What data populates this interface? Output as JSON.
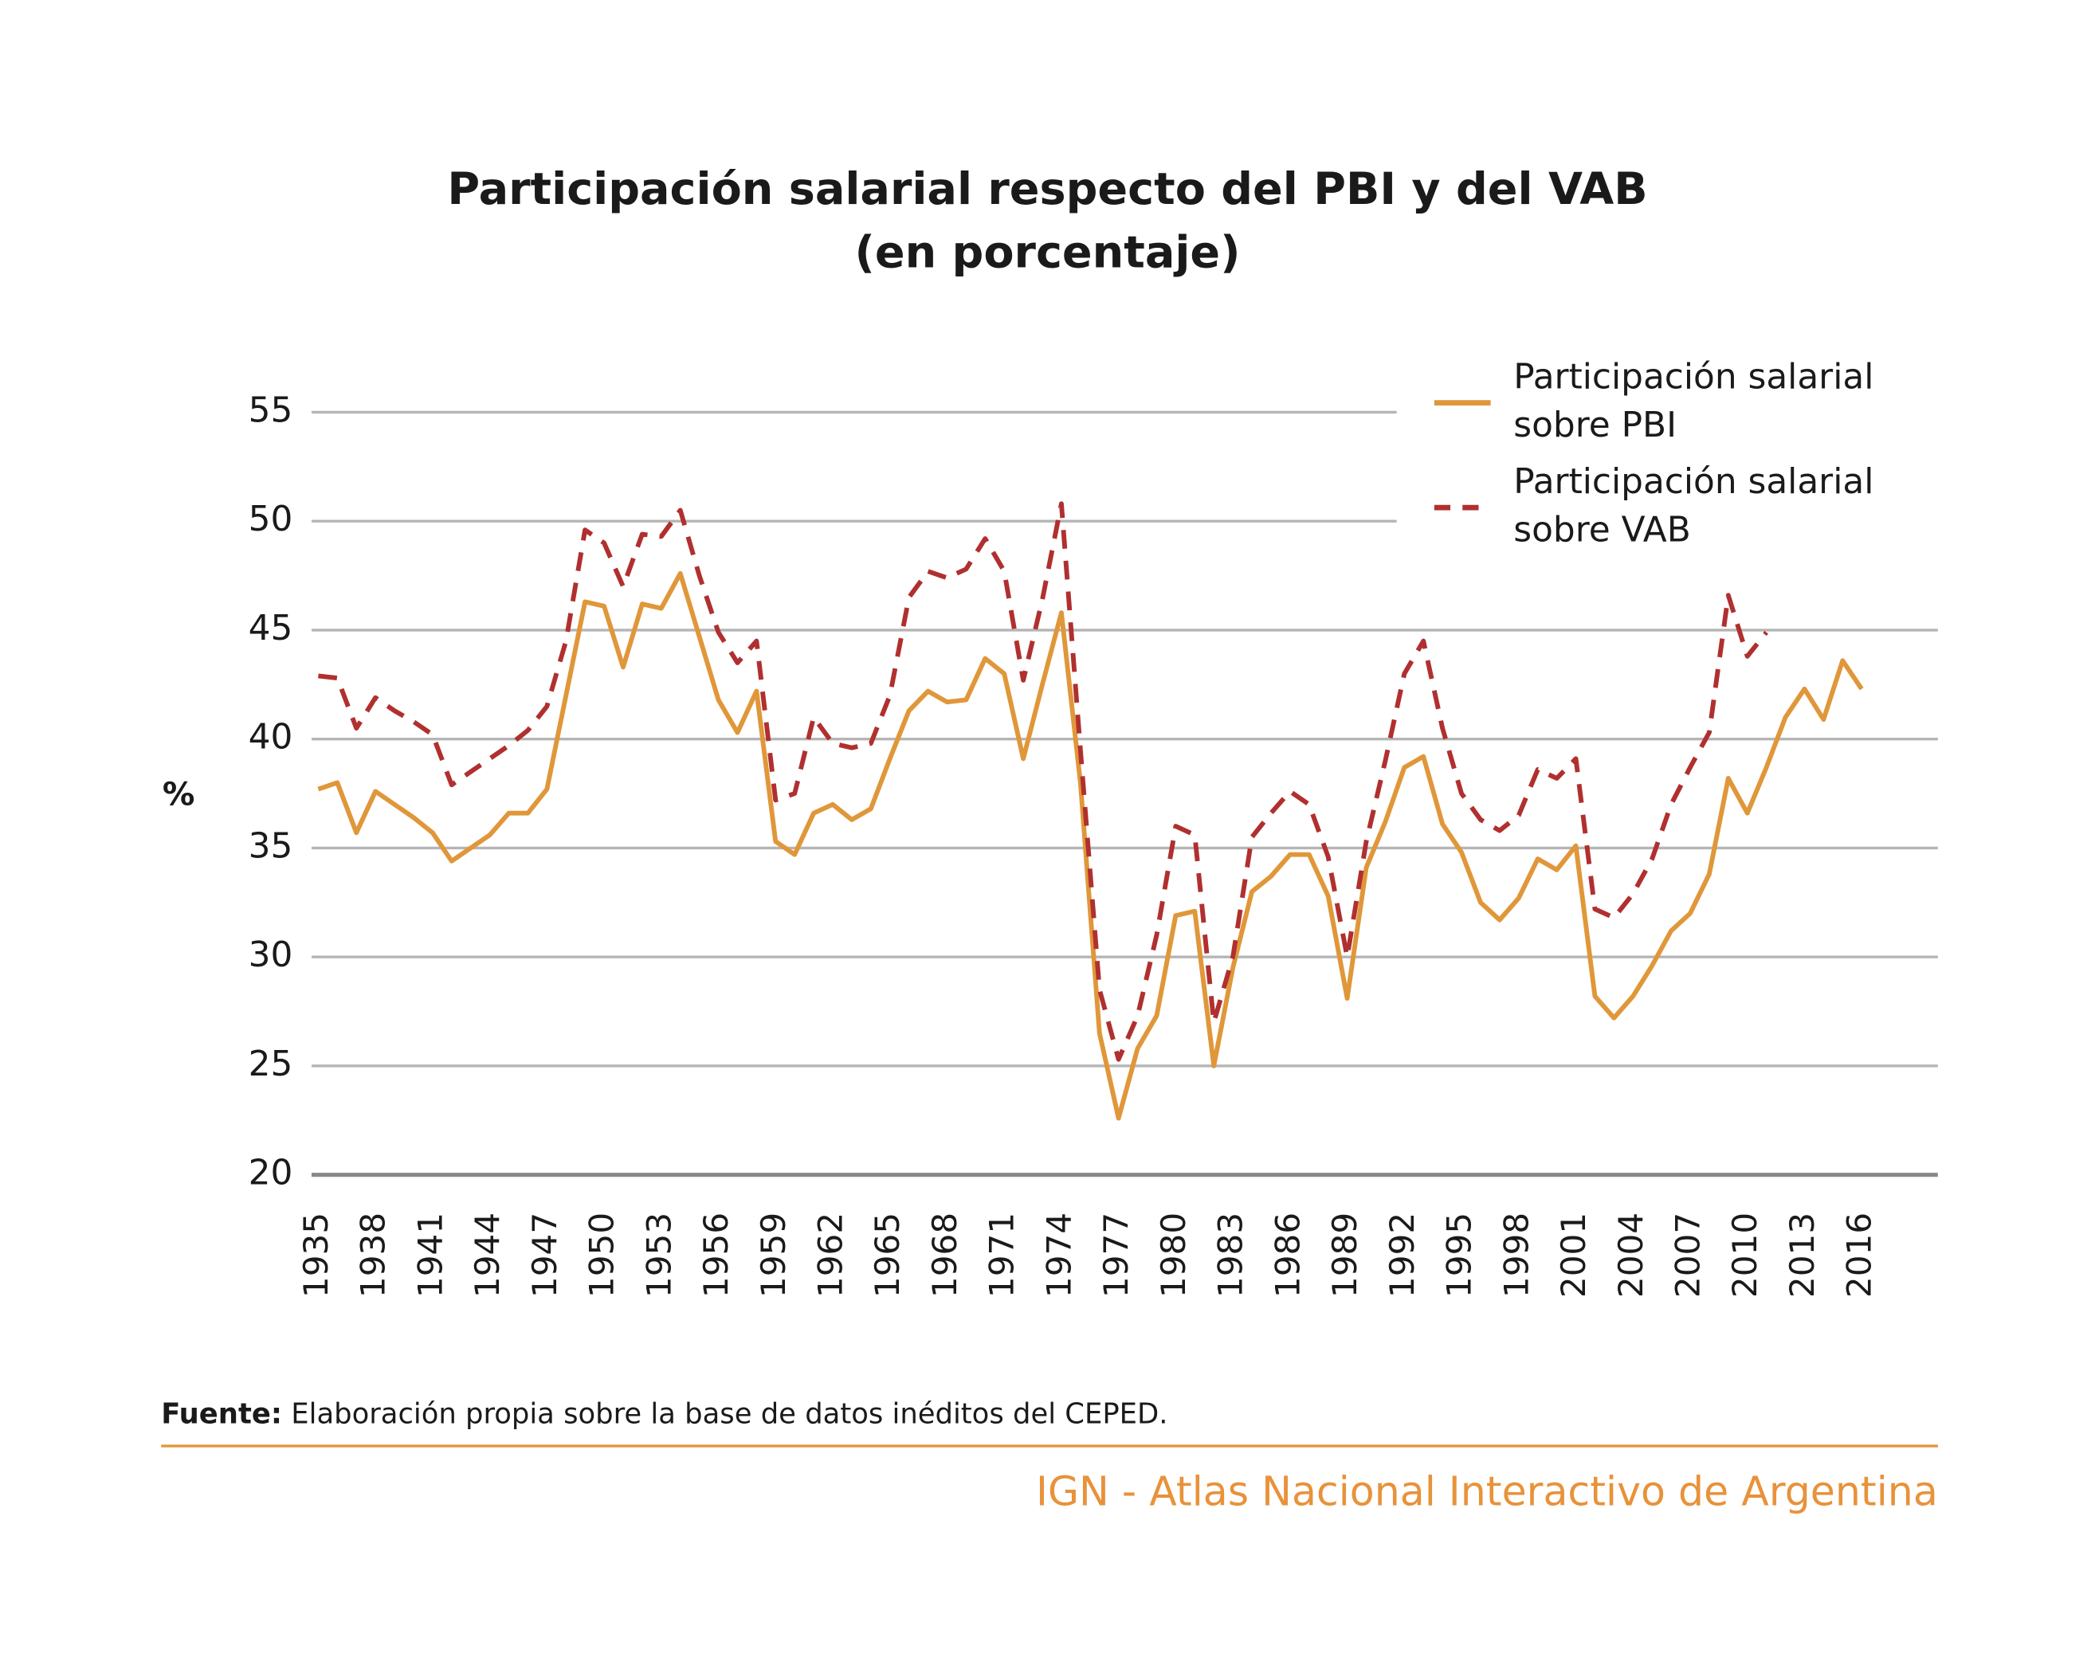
{
  "chart_data": {
    "type": "line",
    "title": [
      "Participación salarial respecto del PBI y del VAB",
      "(en porcentaje)"
    ],
    "y_label": "%",
    "x": [
      1935,
      1936,
      1937,
      1938,
      1939,
      1940,
      1941,
      1942,
      1943,
      1944,
      1945,
      1946,
      1947,
      1948,
      1949,
      1950,
      1951,
      1952,
      1953,
      1954,
      1955,
      1956,
      1957,
      1958,
      1959,
      1960,
      1961,
      1962,
      1963,
      1964,
      1965,
      1966,
      1967,
      1968,
      1969,
      1970,
      1971,
      1972,
      1973,
      1974,
      1975,
      1976,
      1977,
      1978,
      1979,
      1980,
      1981,
      1982,
      1983,
      1984,
      1985,
      1986,
      1987,
      1988,
      1989,
      1990,
      1991,
      1992,
      1993,
      1994,
      1995,
      1996,
      1997,
      1998,
      1999,
      2000,
      2001,
      2002,
      2003,
      2004,
      2005,
      2006,
      2007,
      2008,
      2009,
      2010,
      2011,
      2012,
      2013,
      2014,
      2015,
      2016
    ],
    "series": [
      {
        "name": "Participación salarial sobre PBI",
        "color": "#e0973a",
        "dashed": false,
        "values": [
          37.7,
          38.0,
          35.7,
          37.6,
          37.0,
          36.4,
          35.7,
          34.4,
          35.0,
          35.6,
          36.6,
          36.6,
          37.7,
          42.0,
          46.3,
          46.1,
          43.3,
          46.2,
          46.0,
          47.6,
          44.7,
          41.8,
          40.3,
          42.2,
          35.3,
          34.7,
          36.6,
          37.0,
          36.3,
          36.8,
          39.1,
          41.3,
          42.2,
          41.7,
          41.8,
          43.7,
          43.0,
          39.1,
          42.5,
          45.8,
          38.0,
          26.5,
          22.6,
          25.8,
          27.3,
          31.9,
          32.1,
          25.0,
          29.5,
          33.0,
          33.7,
          34.7,
          34.7,
          32.8,
          28.1,
          34.1,
          36.2,
          38.7,
          39.2,
          36.1,
          34.8,
          32.5,
          31.7,
          32.7,
          34.5,
          34.0,
          35.1,
          28.2,
          27.2,
          28.2,
          29.6,
          31.2,
          32.0,
          33.8,
          38.2,
          36.6,
          38.7,
          41.0,
          42.3,
          40.9,
          43.6,
          42.3
        ]
      },
      {
        "name": "Participación salarial sobre VAB",
        "color": "#b0302f",
        "dashed": true,
        "values": [
          42.9,
          42.8,
          40.5,
          41.9,
          41.3,
          40.8,
          40.2,
          37.9,
          38.5,
          39.1,
          39.7,
          40.4,
          41.5,
          44.5,
          49.6,
          49.0,
          47.0,
          49.4,
          49.3,
          50.5,
          47.5,
          44.9,
          43.5,
          44.5,
          37.2,
          37.5,
          41.0,
          39.8,
          39.6,
          39.8,
          42.0,
          46.5,
          47.7,
          47.4,
          47.8,
          49.2,
          47.7,
          42.7,
          46.4,
          50.8,
          39.5,
          28.5,
          25.3,
          27.3,
          31.0,
          36.0,
          35.6,
          27.0,
          30.0,
          35.5,
          36.6,
          37.6,
          37.0,
          34.6,
          30.0,
          35.3,
          39.0,
          43.0,
          44.5,
          40.5,
          37.5,
          36.3,
          35.8,
          36.5,
          38.6,
          38.2,
          39.1,
          32.2,
          31.8,
          32.9,
          34.5,
          37.0,
          38.7,
          40.3,
          46.6,
          43.8,
          44.9,
          null,
          null,
          null,
          null,
          null
        ]
      }
    ],
    "xlim": [
      1935,
      2020
    ],
    "xticks": [
      1935,
      1938,
      1941,
      1944,
      1947,
      1950,
      1953,
      1956,
      1959,
      1962,
      1965,
      1968,
      1971,
      1974,
      1977,
      1980,
      1983,
      1986,
      1989,
      1992,
      1995,
      1998,
      2001,
      2004,
      2007,
      2010,
      2013,
      2016
    ],
    "ylim": [
      20,
      55
    ],
    "yticks": [
      20,
      25,
      30,
      35,
      40,
      45,
      50,
      55
    ],
    "grid": true,
    "legend": "top-right"
  },
  "footer": {
    "source_label": "Fuente:",
    "source_text": " Elaboración propia sobre la base de datos inéditos del CEPED.",
    "credit": "IGN - Atlas Nacional Interactivo de Argentina"
  }
}
